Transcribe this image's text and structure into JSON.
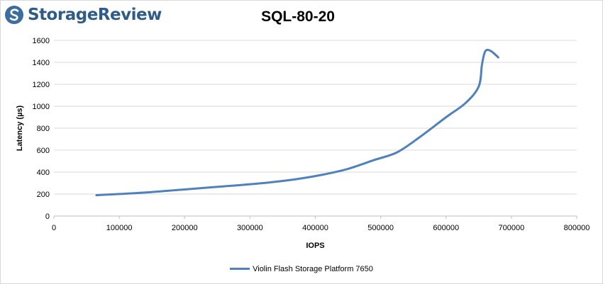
{
  "brand": {
    "name": "StorageReview",
    "color": "#2f5b87",
    "icon": "storagereview-logo-icon"
  },
  "chart_data": {
    "type": "line",
    "title": "SQL-80-20",
    "xlabel": "IOPS",
    "ylabel": "Latency (µs)",
    "xlim": [
      0,
      800000
    ],
    "ylim": [
      0,
      1600
    ],
    "x_ticks": [
      "0",
      "100000",
      "200000",
      "300000",
      "400000",
      "500000",
      "600000",
      "700000",
      "800000"
    ],
    "y_ticks": [
      "0",
      "200",
      "400",
      "600",
      "800",
      "1000",
      "1200",
      "1400",
      "1600"
    ],
    "grid": "horizontal",
    "legend_position": "bottom",
    "series": [
      {
        "name": "Violin Flash Storage Platform 7650",
        "color": "#4f81bd",
        "points": [
          [
            65000,
            190
          ],
          [
            130000,
            210
          ],
          [
            200000,
            242
          ],
          [
            260000,
            270
          ],
          [
            320000,
            300
          ],
          [
            370000,
            335
          ],
          [
            410000,
            375
          ],
          [
            450000,
            430
          ],
          [
            490000,
            510
          ],
          [
            525000,
            580
          ],
          [
            560000,
            720
          ],
          [
            600000,
            900
          ],
          [
            630000,
            1030
          ],
          [
            650000,
            1180
          ],
          [
            655000,
            1380
          ],
          [
            660000,
            1500
          ],
          [
            668000,
            1505
          ],
          [
            680000,
            1445
          ]
        ]
      }
    ]
  }
}
